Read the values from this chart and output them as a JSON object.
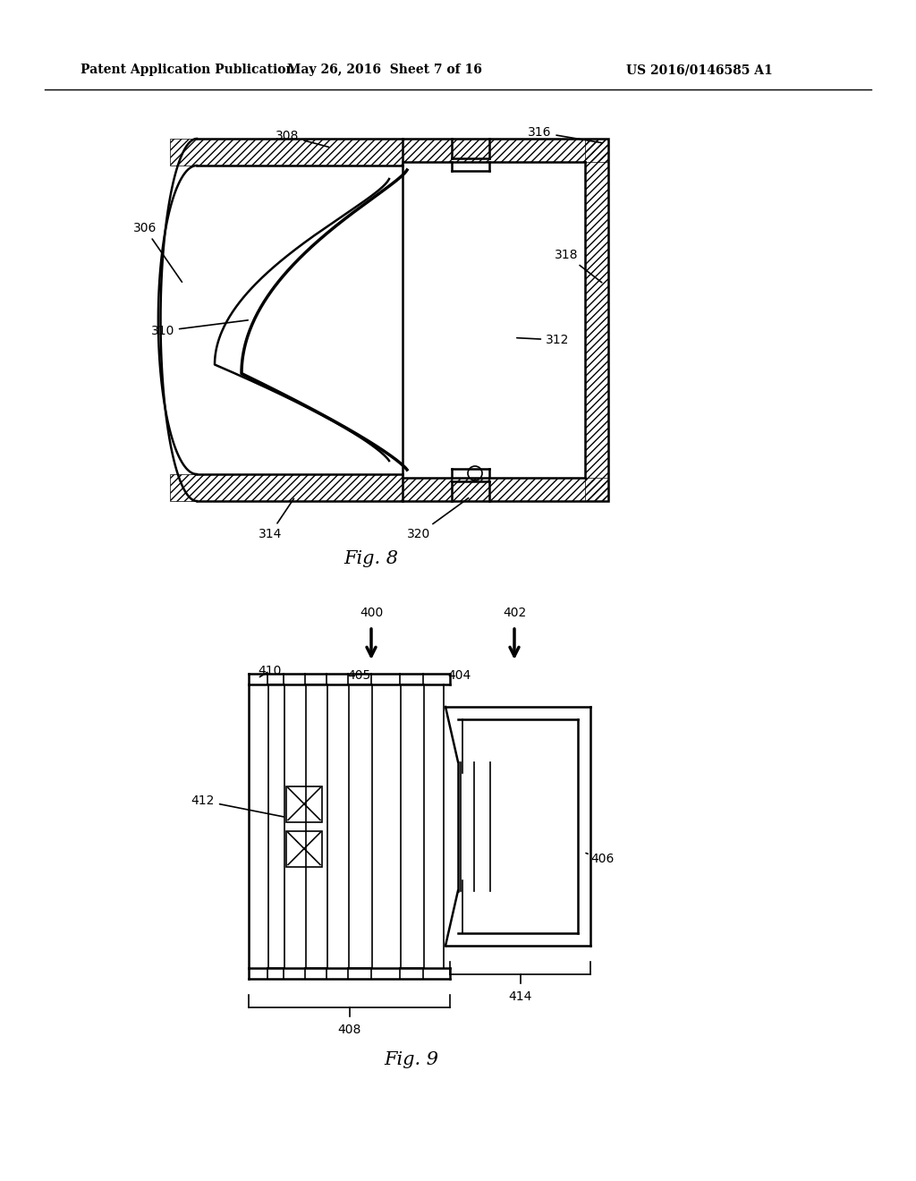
{
  "title_left": "Patent Application Publication",
  "title_mid": "May 26, 2016  Sheet 7 of 16",
  "title_right": "US 2016/0146585 A1",
  "fig8_label": "Fig. 8",
  "fig9_label": "Fig. 9",
  "bg_color": "#ffffff",
  "line_color": "#000000"
}
